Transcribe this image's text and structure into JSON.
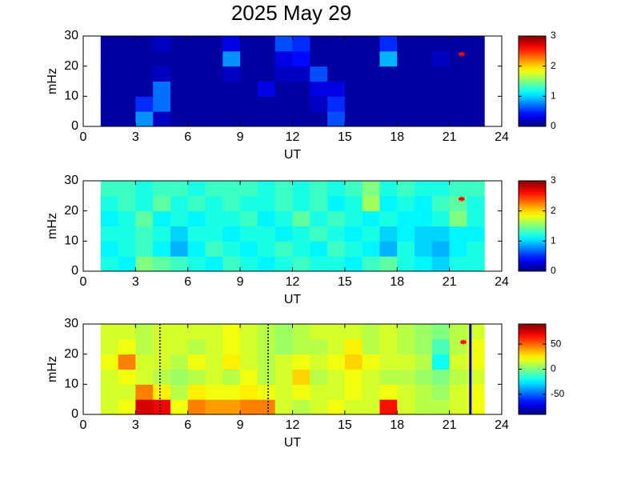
{
  "chart_data": [
    {
      "type": "heatmap",
      "title": "2025 May 29",
      "xlabel": "UT",
      "ylabel": "mHz",
      "colormap": "jet",
      "xlim": [
        0,
        24
      ],
      "xticks": [
        0,
        3,
        6,
        9,
        12,
        15,
        18,
        21,
        24
      ],
      "ylim": [
        0,
        30
      ],
      "yticks": [
        0,
        10,
        20,
        30
      ],
      "xbins": [
        1,
        2,
        3,
        4,
        5,
        6,
        7,
        8,
        9,
        10,
        11,
        12,
        13,
        14,
        15,
        16,
        17,
        18,
        19,
        20,
        21,
        22,
        23
      ],
      "ybins": [
        0,
        5,
        10,
        15,
        20,
        25,
        30
      ],
      "clim": [
        0,
        3
      ],
      "cticks": [
        0,
        1,
        2,
        3
      ],
      "z": [
        [
          0.1,
          0.1,
          0.8,
          0.2,
          0.1,
          0.1,
          0.1,
          0.1,
          0.1,
          0.1,
          0.1,
          0.1,
          0.1,
          0.6,
          0.1,
          0.1,
          0.1,
          0.1,
          0.1,
          0.1,
          0.1,
          0.1
        ],
        [
          0.1,
          0.1,
          0.5,
          0.7,
          0.1,
          0.1,
          0.1,
          0.1,
          0.1,
          0.1,
          0.1,
          0.1,
          0.2,
          0.5,
          0.1,
          0.1,
          0.1,
          0.1,
          0.1,
          0.1,
          0.1,
          0.1
        ],
        [
          0.1,
          0.1,
          0.1,
          0.7,
          0.1,
          0.1,
          0.1,
          0.1,
          0.1,
          0.3,
          0.1,
          0.1,
          0.3,
          0.3,
          0.1,
          0.1,
          0.1,
          0.1,
          0.1,
          0.1,
          0.1,
          0.1
        ],
        [
          0.1,
          0.1,
          0.1,
          0.2,
          0.1,
          0.1,
          0.1,
          0.2,
          0.1,
          0.1,
          0.2,
          0.2,
          0.6,
          0.1,
          0.1,
          0.1,
          0.1,
          0.1,
          0.1,
          0.1,
          0.1,
          0.1
        ],
        [
          0.1,
          0.1,
          0.1,
          0.1,
          0.1,
          0.1,
          0.1,
          0.8,
          0.1,
          0.1,
          0.3,
          0.4,
          0.1,
          0.1,
          0.1,
          0.1,
          0.9,
          0.1,
          0.1,
          0.2,
          0.1,
          0.1
        ],
        [
          0.1,
          0.1,
          0.1,
          0.2,
          0.1,
          0.1,
          0.1,
          0.3,
          0.1,
          0.1,
          0.6,
          0.5,
          0.1,
          0.1,
          0.1,
          0.1,
          0.5,
          0.1,
          0.1,
          0.1,
          0.1,
          0.1
        ]
      ],
      "markers": {
        "x": [
          21.7
        ],
        "y": [
          24
        ],
        "color": "#ff0000"
      }
    },
    {
      "type": "heatmap",
      "xlabel": "UT",
      "ylabel": "mHz",
      "colormap": "jet",
      "xlim": [
        0,
        24
      ],
      "xticks": [
        0,
        3,
        6,
        9,
        12,
        15,
        18,
        21,
        24
      ],
      "ylim": [
        0,
        30
      ],
      "yticks": [
        0,
        10,
        20,
        30
      ],
      "xbins": [
        1,
        2,
        3,
        4,
        5,
        6,
        7,
        8,
        9,
        10,
        11,
        12,
        13,
        14,
        15,
        16,
        17,
        18,
        19,
        20,
        21,
        22,
        23
      ],
      "ybins": [
        0,
        5,
        10,
        15,
        20,
        25,
        30
      ],
      "clim": [
        0,
        3
      ],
      "cticks": [
        0,
        1,
        2,
        3
      ],
      "z": [
        [
          1.2,
          1.1,
          1.5,
          1.4,
          1.3,
          1.2,
          1.1,
          1.3,
          1.2,
          1.1,
          1.2,
          1.3,
          1.2,
          1.2,
          1.1,
          1.3,
          1.4,
          1.2,
          1.1,
          1.0,
          1.2,
          1.2
        ],
        [
          1.1,
          1.2,
          1.3,
          1.1,
          0.9,
          1.1,
          1.3,
          1.2,
          1.1,
          1.2,
          1.3,
          1.2,
          1.1,
          1.3,
          1.2,
          1.1,
          0.9,
          1.2,
          1.0,
          0.9,
          1.1,
          1.2
        ],
        [
          1.2,
          1.2,
          1.3,
          1.2,
          1.0,
          1.2,
          1.2,
          1.1,
          1.2,
          1.2,
          1.1,
          1.2,
          1.3,
          1.2,
          1.1,
          1.2,
          1.0,
          1.1,
          1.0,
          1.0,
          1.1,
          1.1
        ],
        [
          1.1,
          1.2,
          1.4,
          1.1,
          1.2,
          1.1,
          1.2,
          1.2,
          1.3,
          1.1,
          1.2,
          1.4,
          1.2,
          1.3,
          1.2,
          1.1,
          1.2,
          1.1,
          1.1,
          1.2,
          1.5,
          1.2
        ],
        [
          1.2,
          1.3,
          1.2,
          1.4,
          1.2,
          1.3,
          1.2,
          1.3,
          1.2,
          1.2,
          1.3,
          1.2,
          1.3,
          1.1,
          1.2,
          1.6,
          1.1,
          1.2,
          1.1,
          1.3,
          1.4,
          1.2
        ],
        [
          1.3,
          1.3,
          1.2,
          1.3,
          1.3,
          1.2,
          1.3,
          1.3,
          1.3,
          1.2,
          1.3,
          1.2,
          1.3,
          1.2,
          1.3,
          1.5,
          1.2,
          1.3,
          1.2,
          1.2,
          1.3,
          1.3
        ]
      ],
      "markers": {
        "x": [
          21.7
        ],
        "y": [
          24
        ],
        "color": "#ff0000"
      }
    },
    {
      "type": "heatmap",
      "xlabel": "UT",
      "ylabel": "mHz",
      "colormap": "jet",
      "xlim": [
        0,
        24
      ],
      "xticks": [
        0,
        3,
        6,
        9,
        12,
        15,
        18,
        21,
        24
      ],
      "ylim": [
        0,
        30
      ],
      "yticks": [
        0,
        10,
        20,
        30
      ],
      "xbins": [
        1,
        2,
        3,
        4,
        5,
        6,
        7,
        8,
        9,
        10,
        11,
        12,
        13,
        14,
        15,
        16,
        17,
        18,
        19,
        20,
        21,
        22,
        23
      ],
      "ybins": [
        0,
        5,
        10,
        15,
        20,
        25,
        30
      ],
      "clim": [
        -90,
        90
      ],
      "cticks": [
        -50,
        0,
        50
      ],
      "z": [
        [
          15,
          20,
          75,
          70,
          20,
          45,
          40,
          40,
          45,
          45,
          15,
          10,
          15,
          20,
          15,
          15,
          65,
          15,
          10,
          10,
          15,
          20
        ],
        [
          15,
          15,
          45,
          25,
          10,
          25,
          20,
          20,
          25,
          20,
          15,
          20,
          15,
          15,
          20,
          15,
          20,
          15,
          10,
          5,
          15,
          20
        ],
        [
          15,
          20,
          15,
          10,
          5,
          10,
          15,
          10,
          20,
          10,
          15,
          30,
          10,
          15,
          20,
          15,
          10,
          10,
          5,
          0,
          10,
          15
        ],
        [
          20,
          45,
          15,
          15,
          10,
          20,
          15,
          25,
          15,
          10,
          15,
          20,
          15,
          20,
          30,
          20,
          15,
          15,
          10,
          -20,
          15,
          20
        ],
        [
          15,
          20,
          10,
          15,
          15,
          10,
          15,
          20,
          15,
          10,
          5,
          10,
          10,
          15,
          25,
          10,
          15,
          10,
          5,
          -10,
          10,
          20
        ],
        [
          15,
          15,
          10,
          15,
          15,
          15,
          15,
          20,
          15,
          10,
          5,
          10,
          15,
          15,
          15,
          10,
          15,
          10,
          5,
          0,
          10,
          15
        ]
      ],
      "markers": {
        "x": [
          21.8
        ],
        "y": [
          24
        ],
        "color": "#ff0000"
      },
      "vlines": [
        {
          "x": 4.4,
          "color": "#000000",
          "dashed": true
        },
        {
          "x": 10.6,
          "color": "#000000",
          "dashed": true
        },
        {
          "x": 22.2,
          "color": "#0000cc",
          "dashed": false
        }
      ]
    }
  ]
}
